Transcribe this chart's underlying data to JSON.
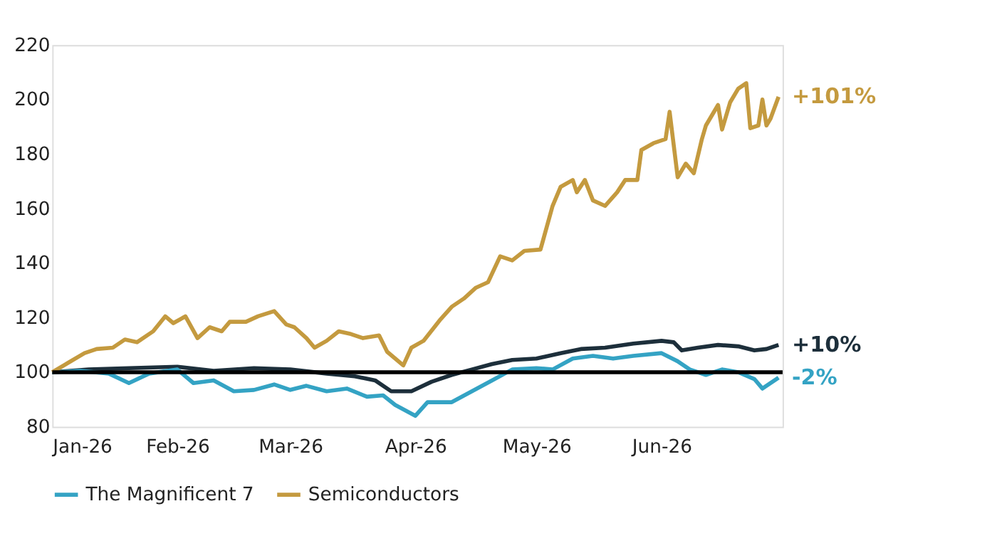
{
  "chart_data": {
    "type": "line",
    "legend": "bottom",
    "grid": false,
    "line_style": "solid",
    "marker": "none",
    "ylim": [
      80,
      220
    ],
    "yticks": [
      80,
      100,
      120,
      140,
      160,
      180,
      200,
      220
    ],
    "xlim": [
      "2026-01-01",
      "2026-07-01"
    ],
    "xticks": [
      {
        "value": "2026-01-01",
        "label": "Jan-26"
      },
      {
        "value": "2026-02-01",
        "label": "Feb-26"
      },
      {
        "value": "2026-03-01",
        "label": "Mar-26"
      },
      {
        "value": "2026-04-01",
        "label": "Apr-26"
      },
      {
        "value": "2026-05-01",
        "label": "May-26"
      },
      {
        "value": "2026-06-01",
        "label": "Jun-26"
      },
      {
        "value": "2026-07-01",
        "label": null
      }
    ],
    "ref_lines": [
      {
        "axis": "y",
        "value": 100,
        "label": null,
        "color": "#000000",
        "line_style": "solid"
      }
    ],
    "series": [
      {
        "color": "#1d2f3b",
        "x": [
          "2026-01-01",
          "2026-01-10",
          "2026-01-20",
          "2026-02-01",
          "2026-02-10",
          "2026-02-20",
          "2026-03-01",
          "2026-03-10",
          "2026-03-17",
          "2026-03-22",
          "2026-03-26",
          "2026-03-31",
          "2026-04-05",
          "2026-04-10",
          "2026-04-15",
          "2026-04-20",
          "2026-04-25",
          "2026-05-01",
          "2026-05-07",
          "2026-05-12",
          "2026-05-18",
          "2026-05-25",
          "2026-06-01",
          "2026-06-04",
          "2026-06-06",
          "2026-06-10",
          "2026-06-15",
          "2026-06-20",
          "2026-06-24",
          "2026-06-27",
          "2026-06-30"
        ],
        "values": [
          100,
          101,
          101.5,
          102,
          100.5,
          101.5,
          101,
          99.5,
          98.5,
          97,
          93,
          93,
          96.5,
          99,
          101,
          103,
          104.5,
          105,
          107,
          108.5,
          109,
          110.5,
          111.5,
          111,
          108,
          109,
          110,
          109.5,
          108,
          108.5,
          110
        ]
      },
      {
        "name": "The Magnificent 7",
        "color": "#34a3c4",
        "x": [
          "2026-01-01",
          "2026-01-08",
          "2026-01-15",
          "2026-01-20",
          "2026-01-25",
          "2026-02-01",
          "2026-02-05",
          "2026-02-10",
          "2026-02-15",
          "2026-02-20",
          "2026-02-25",
          "2026-03-01",
          "2026-03-05",
          "2026-03-10",
          "2026-03-15",
          "2026-03-20",
          "2026-03-24",
          "2026-03-27",
          "2026-04-01",
          "2026-04-04",
          "2026-04-10",
          "2026-04-15",
          "2026-04-20",
          "2026-04-25",
          "2026-05-01",
          "2026-05-05",
          "2026-05-10",
          "2026-05-15",
          "2026-05-20",
          "2026-05-25",
          "2026-06-01",
          "2026-06-05",
          "2026-06-08",
          "2026-06-12",
          "2026-06-16",
          "2026-06-20",
          "2026-06-24",
          "2026-06-26",
          "2026-06-30"
        ],
        "values": [
          100,
          100.5,
          99.5,
          96,
          99.5,
          101,
          96,
          97,
          93,
          93.5,
          95.5,
          93.5,
          95,
          93,
          94,
          91,
          91.5,
          88,
          84,
          89,
          89,
          93,
          97,
          101,
          101.5,
          101,
          105,
          106,
          105,
          106,
          107,
          104,
          101,
          99,
          101,
          100,
          97.5,
          94,
          98
        ]
      },
      {
        "name": "Semiconductors",
        "color": "#c49a3f",
        "x": [
          "2026-01-01",
          "2026-01-05",
          "2026-01-09",
          "2026-01-12",
          "2026-01-16",
          "2026-01-19",
          "2026-01-22",
          "2026-01-26",
          "2026-01-29",
          "2026-01-31",
          "2026-02-03",
          "2026-02-06",
          "2026-02-09",
          "2026-02-12",
          "2026-02-14",
          "2026-02-18",
          "2026-02-21",
          "2026-02-25",
          "2026-02-28",
          "2026-03-02",
          "2026-03-05",
          "2026-03-07",
          "2026-03-10",
          "2026-03-13",
          "2026-03-16",
          "2026-03-19",
          "2026-03-23",
          "2026-03-25",
          "2026-03-29",
          "2026-03-31",
          "2026-04-03",
          "2026-04-07",
          "2026-04-10",
          "2026-04-13",
          "2026-04-16",
          "2026-04-19",
          "2026-04-22",
          "2026-04-25",
          "2026-04-28",
          "2026-05-02",
          "2026-05-05",
          "2026-05-07",
          "2026-05-10",
          "2026-05-11",
          "2026-05-13",
          "2026-05-15",
          "2026-05-18",
          "2026-05-21",
          "2026-05-23",
          "2026-05-26",
          "2026-05-27",
          "2026-05-30",
          "2026-06-02",
          "2026-06-03",
          "2026-06-05",
          "2026-06-07",
          "2026-06-09",
          "2026-06-11",
          "2026-06-12",
          "2026-06-15",
          "2026-06-16",
          "2026-06-18",
          "2026-06-20",
          "2026-06-22",
          "2026-06-23",
          "2026-06-25",
          "2026-06-26",
          "2026-06-27",
          "2026-06-28",
          "2026-06-30"
        ],
        "values": [
          100,
          103.5,
          107,
          108.5,
          109,
          112,
          111,
          115,
          120.5,
          118,
          120.5,
          112.5,
          116.5,
          115,
          118.5,
          118.5,
          120.5,
          122.4,
          117.5,
          116.5,
          112.5,
          109,
          111.5,
          115,
          114,
          112.5,
          113.5,
          107.5,
          102.5,
          109,
          111.5,
          119,
          124,
          127,
          131,
          133,
          142.5,
          141,
          144.5,
          145,
          161,
          168,
          170.5,
          166,
          170.5,
          163,
          161,
          166,
          170.5,
          170.5,
          181.5,
          184,
          185.5,
          195.5,
          171.5,
          176.5,
          173,
          185.5,
          190.5,
          198,
          189,
          199,
          204,
          206,
          189.5,
          190.5,
          200,
          190.5,
          193,
          201
        ]
      }
    ],
    "annotations": [
      {
        "text": "+10%",
        "x": "2026-06-30",
        "y": 110
      },
      {
        "text": "-2%",
        "x": "2026-06-30",
        "y": 98
      },
      {
        "text": "+101%",
        "x": "2026-06-30",
        "y": 201
      }
    ]
  }
}
